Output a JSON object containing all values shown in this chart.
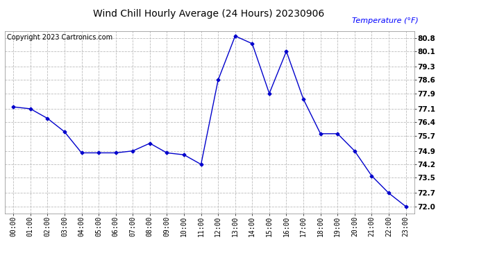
{
  "title": "Wind Chill Hourly Average (24 Hours) 20230906",
  "copyright_text": "Copyright 2023 Cartronics.com",
  "ylabel": "Temperature (°F)",
  "ylabel_color": "blue",
  "hours": [
    "00:00",
    "01:00",
    "02:00",
    "03:00",
    "04:00",
    "05:00",
    "06:00",
    "07:00",
    "08:00",
    "09:00",
    "10:00",
    "11:00",
    "12:00",
    "13:00",
    "14:00",
    "15:00",
    "16:00",
    "17:00",
    "18:00",
    "19:00",
    "20:00",
    "21:00",
    "22:00",
    "23:00"
  ],
  "values": [
    77.2,
    77.1,
    76.6,
    75.9,
    74.8,
    74.8,
    74.8,
    74.9,
    75.3,
    74.8,
    74.7,
    74.2,
    78.6,
    80.9,
    80.5,
    77.9,
    80.1,
    77.6,
    75.8,
    75.8,
    74.9,
    73.6,
    72.7,
    72.0
  ],
  "line_color": "#0000cc",
  "marker": "D",
  "marker_size": 2.5,
  "line_width": 1.0,
  "ylim_min": 71.65,
  "ylim_max": 81.15,
  "yticks": [
    72.0,
    72.7,
    73.5,
    74.2,
    74.9,
    75.7,
    76.4,
    77.1,
    77.9,
    78.6,
    79.3,
    80.1,
    80.8
  ],
  "grid_color": "#bbbbbb",
  "grid_style": "--",
  "bg_color": "#ffffff",
  "title_fontsize": 10,
  "copyright_fontsize": 7,
  "ylabel_fontsize": 8,
  "tick_fontsize": 7,
  "ytick_fontsize": 7.5
}
